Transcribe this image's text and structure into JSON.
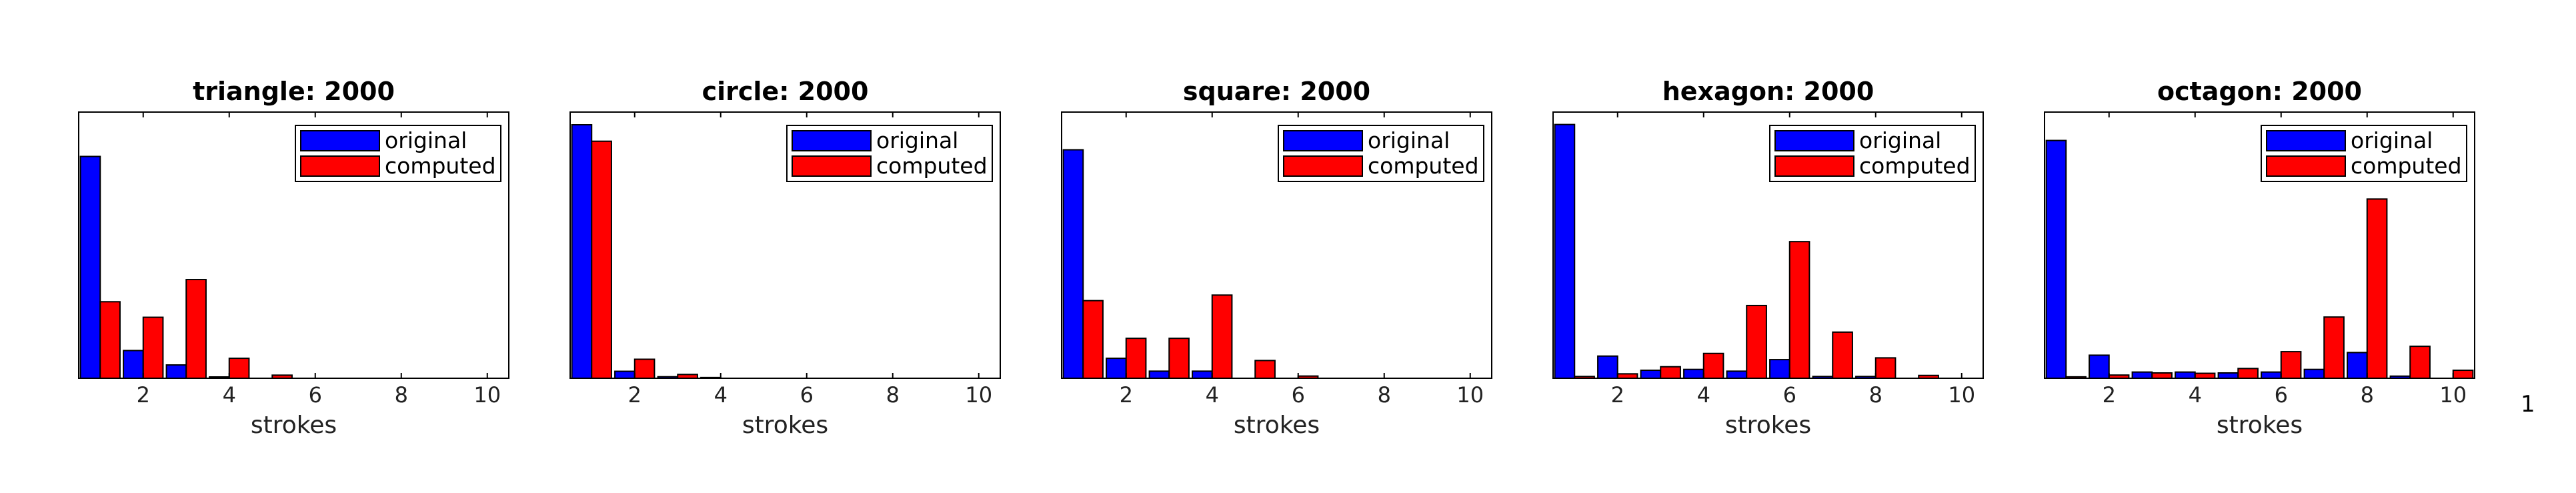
{
  "colors": {
    "original": "#0000ff",
    "computed": "#ff0000",
    "axis": "#000000"
  },
  "page_number": "1",
  "chart_data": [
    {
      "type": "bar",
      "title": "triangle: 2000",
      "xlabel": "strokes",
      "x": [
        1,
        2,
        3,
        4,
        5,
        6,
        7,
        8,
        9,
        10
      ],
      "xlim": [
        0.5,
        10.5
      ],
      "xticks": [
        2,
        4,
        6,
        8,
        10
      ],
      "ylim": [
        0,
        1200
      ],
      "legend": "top-right",
      "series": [
        {
          "name": "original",
          "values": [
            1000,
            125,
            60,
            6,
            0,
            0,
            0,
            0,
            0,
            0
          ]
        },
        {
          "name": "computed",
          "values": [
            345,
            275,
            445,
            90,
            14,
            0,
            0,
            0,
            0,
            0
          ]
        }
      ]
    },
    {
      "type": "bar",
      "title": "circle: 2000",
      "xlabel": "strokes",
      "x": [
        1,
        2,
        3,
        4,
        5,
        6,
        7,
        8,
        9,
        10
      ],
      "xlim": [
        0.5,
        10.5
      ],
      "xticks": [
        2,
        4,
        6,
        8,
        10
      ],
      "ylim": [
        0,
        2100
      ],
      "legend": "top-right",
      "series": [
        {
          "name": "original",
          "values": [
            2000,
            55,
            12,
            6,
            0,
            0,
            0,
            0,
            0,
            0
          ]
        },
        {
          "name": "computed",
          "values": [
            1870,
            150,
            30,
            0,
            0,
            0,
            0,
            0,
            0,
            0
          ]
        }
      ]
    },
    {
      "type": "bar",
      "title": "square: 2000",
      "xlabel": "strokes",
      "x": [
        1,
        2,
        3,
        4,
        5,
        6,
        7,
        8,
        9,
        10
      ],
      "xlim": [
        0.5,
        10.5
      ],
      "xticks": [
        2,
        4,
        6,
        8,
        10
      ],
      "ylim": [
        0,
        1200
      ],
      "legend": "top-right",
      "series": [
        {
          "name": "original",
          "values": [
            1030,
            90,
            32,
            32,
            0,
            0,
            0,
            0,
            0,
            0
          ]
        },
        {
          "name": "computed",
          "values": [
            350,
            180,
            180,
            375,
            80,
            10,
            0,
            0,
            0,
            0
          ]
        }
      ]
    },
    {
      "type": "bar",
      "title": "hexagon: 2000",
      "xlabel": "strokes",
      "x": [
        1,
        2,
        3,
        4,
        5,
        6,
        7,
        8,
        9,
        10
      ],
      "xlim": [
        0.5,
        10.5
      ],
      "xticks": [
        2,
        4,
        6,
        8,
        10
      ],
      "ylim": [
        0,
        1500
      ],
      "legend": "top-right",
      "series": [
        {
          "name": "original",
          "values": [
            1430,
            125,
            45,
            50,
            40,
            105,
            10,
            10,
            0,
            0
          ]
        },
        {
          "name": "computed",
          "values": [
            10,
            25,
            65,
            140,
            410,
            770,
            260,
            115,
            16,
            0
          ]
        }
      ]
    },
    {
      "type": "bar",
      "title": "octagon: 2000",
      "xlabel": "strokes",
      "x": [
        1,
        2,
        3,
        4,
        5,
        6,
        7,
        8,
        9,
        10
      ],
      "xlim": [
        0.5,
        10.5
      ],
      "xticks": [
        2,
        4,
        6,
        8,
        10
      ],
      "ylim": [
        0,
        1500
      ],
      "legend": "top-right",
      "series": [
        {
          "name": "original",
          "values": [
            1340,
            130,
            35,
            35,
            30,
            35,
            50,
            145,
            12,
            0
          ]
        },
        {
          "name": "computed",
          "values": [
            8,
            18,
            30,
            28,
            55,
            150,
            345,
            1010,
            180,
            45
          ]
        }
      ]
    }
  ]
}
